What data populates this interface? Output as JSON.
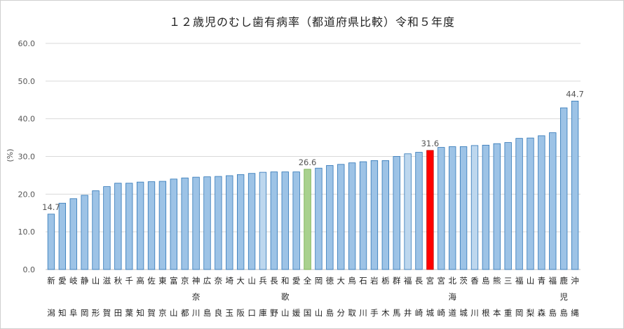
{
  "chart_data": {
    "type": "bar",
    "title": "１２歳児のむし歯有病率（都道府県比較）令和５年度",
    "ylabel": "(%)",
    "ylim": [
      0,
      60
    ],
    "yticks": [
      "0.0",
      "10.0",
      "20.0",
      "30.0",
      "40.0",
      "50.0",
      "60.0"
    ],
    "grid": true,
    "colors": {
      "default": "#9dc3e6",
      "highlight_red": "#ff0000",
      "highlight_green": "#a9d18e",
      "light_blue": "#bdd7ee",
      "border": "#2e75b6"
    },
    "categories": [
      [
        "新",
        "潟"
      ],
      [
        "愛",
        "知"
      ],
      [
        "岐",
        "阜"
      ],
      [
        "静",
        "岡"
      ],
      [
        "山",
        "形"
      ],
      [
        "滋",
        "賀"
      ],
      [
        "秋",
        "田"
      ],
      [
        "千",
        "葉"
      ],
      [
        "高",
        "知"
      ],
      [
        "佐",
        "賀"
      ],
      [
        "東",
        "京"
      ],
      [
        "富",
        "山"
      ],
      [
        "京",
        "都"
      ],
      [
        "神",
        "奈",
        "川"
      ],
      [
        "広",
        "島"
      ],
      [
        "奈",
        "良"
      ],
      [
        "埼",
        "玉"
      ],
      [
        "大",
        "阪"
      ],
      [
        "山",
        "口"
      ],
      [
        "兵",
        "庫"
      ],
      [
        "長",
        "野"
      ],
      [
        "和",
        "歌",
        "山"
      ],
      [
        "愛",
        "媛"
      ],
      [
        "全",
        "国"
      ],
      [
        "岡",
        "山"
      ],
      [
        "徳",
        "島"
      ],
      [
        "大",
        "分"
      ],
      [
        "鳥",
        "取"
      ],
      [
        "石",
        "川"
      ],
      [
        "岩",
        "手"
      ],
      [
        "栃",
        "木"
      ],
      [
        "群",
        "馬"
      ],
      [
        "福",
        "井"
      ],
      [
        "長",
        "崎"
      ],
      [
        "宮",
        "城"
      ],
      [
        "宮",
        "崎"
      ],
      [
        "北",
        "海",
        "道"
      ],
      [
        "茨",
        "城"
      ],
      [
        "香",
        "川"
      ],
      [
        "島",
        "根"
      ],
      [
        "熊",
        "本"
      ],
      [
        "三",
        "重"
      ],
      [
        "福",
        "岡"
      ],
      [
        "山",
        "梨"
      ],
      [
        "青",
        "森"
      ],
      [
        "福",
        "島"
      ],
      [
        "鹿",
        "児",
        "島"
      ],
      [
        "沖",
        "縄"
      ]
    ],
    "values": [
      14.7,
      17.6,
      18.8,
      19.7,
      20.9,
      22.0,
      22.9,
      22.9,
      23.2,
      23.3,
      23.4,
      24.0,
      24.3,
      24.5,
      24.6,
      24.7,
      24.9,
      25.2,
      25.5,
      25.8,
      25.9,
      25.9,
      25.9,
      26.6,
      26.9,
      27.6,
      27.9,
      28.3,
      28.6,
      28.9,
      28.9,
      30.0,
      30.7,
      31.1,
      31.6,
      32.4,
      32.6,
      32.6,
      32.9,
      33.0,
      33.4,
      33.7,
      34.8,
      34.9,
      35.5,
      36.3,
      42.9,
      44.7
    ],
    "bar_styles": {
      "23": "highlight_green",
      "34": "highlight_red",
      "19": "light_blue",
      "32": "light_blue",
      "38": "light_blue"
    },
    "data_labels": [
      {
        "index": 0,
        "text": "14.7"
      },
      {
        "index": 23,
        "text": "26.6"
      },
      {
        "index": 34,
        "text": "31.6"
      },
      {
        "index": 47,
        "text": "44.7"
      }
    ]
  }
}
